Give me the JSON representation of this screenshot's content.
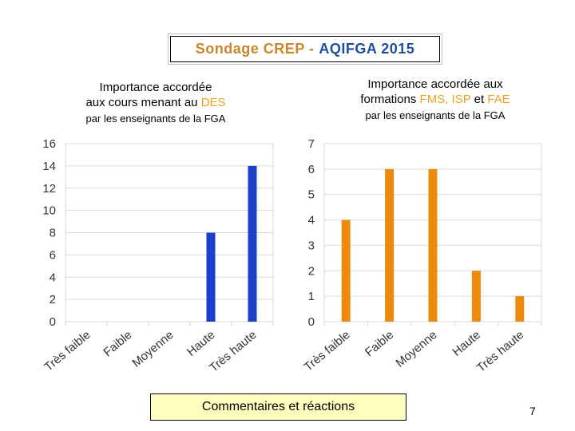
{
  "header": {
    "title_part1": "Sondage CREP - ",
    "title_part2": "AQIFGA  2015"
  },
  "left_chart": {
    "title_line1": "Importance accordée",
    "title_line2_prefix": "aux cours menant au ",
    "title_line2_highlight": "DES",
    "subtitle": "par les enseignants de la FGA"
  },
  "right_chart": {
    "title_line1": "Importance accordée aux",
    "title_line2_prefix": "formations ",
    "title_line2_h1": "FMS, ISP",
    "title_line2_mid": " et ",
    "title_line2_h2": "FAE",
    "subtitle": "par les enseignants de la FGA"
  },
  "footer": {
    "comments_label": "Commentaires et réactions",
    "page_number": "7"
  },
  "colors": {
    "blue_bar": "#1a3fc8",
    "orange_bar": "#ec8a0c",
    "highlight": "#e8a21c",
    "title_orange": "#c8862a",
    "title_blue": "#1f4e9a"
  },
  "chart_data": [
    {
      "type": "bar",
      "categories": [
        "Très faible",
        "Faible",
        "Moyenne",
        "Haute",
        "Très haute"
      ],
      "values": [
        0,
        0,
        0,
        8,
        14
      ],
      "ylim": [
        0,
        16
      ],
      "yticks": [
        0,
        2,
        4,
        6,
        8,
        10,
        12,
        14,
        16
      ],
      "grid": true,
      "color": "#1a3fc8"
    },
    {
      "type": "bar",
      "categories": [
        "Très faible",
        "Faible",
        "Moyenne",
        "Haute",
        "Très haute"
      ],
      "values": [
        4,
        6,
        6,
        2,
        1
      ],
      "ylim": [
        0,
        7
      ],
      "yticks": [
        0,
        1,
        2,
        3,
        4,
        5,
        6,
        7
      ],
      "grid": true,
      "color": "#ec8a0c"
    }
  ]
}
